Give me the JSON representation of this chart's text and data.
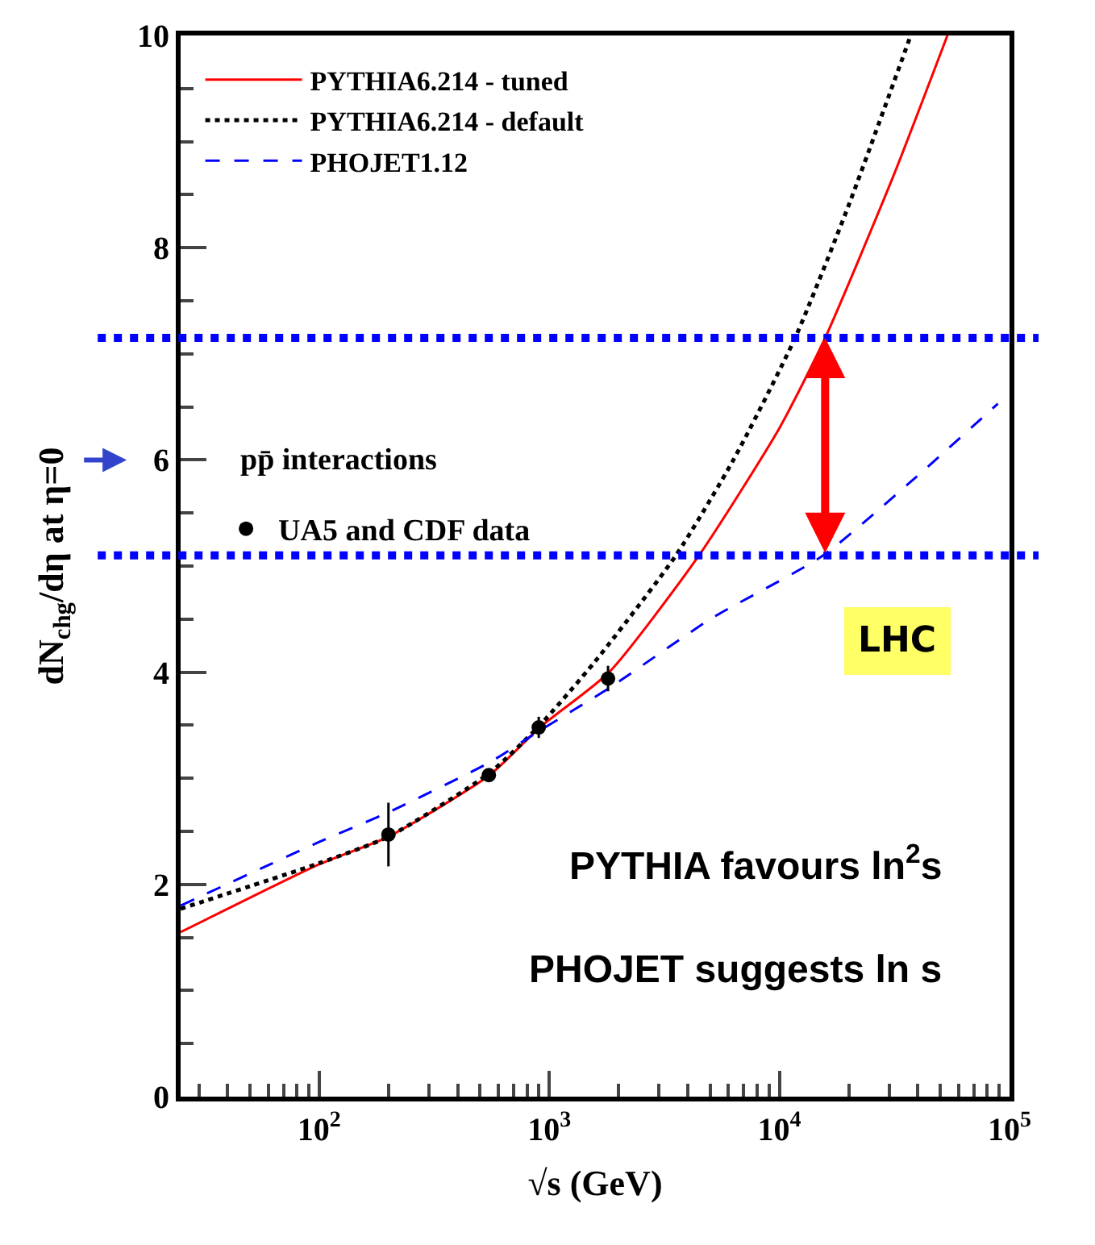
{
  "chart_data": {
    "type": "line",
    "xlabel": "√s (GeV)",
    "ylabel": "dN$_{chg}$/dη at η=0",
    "log": "x",
    "xlim": [
      25,
      100000
    ],
    "xticks": [
      {
        "value": 100,
        "label": "10$^{2}$"
      },
      {
        "value": 1000,
        "label": "10$^{3}$"
      },
      {
        "value": 10000,
        "label": "10$^{4}$"
      },
      {
        "value": 100000,
        "label": "10$^{5}$"
      }
    ],
    "ylim": [
      0,
      10
    ],
    "yticks": [
      0,
      2,
      4,
      6,
      8,
      10
    ],
    "legend": "top left",
    "series": [
      {
        "name": "PYTHIA6.214 - tuned",
        "color": "#ff0000",
        "line_style": "solid",
        "marker": "none",
        "x": [
          25,
          100,
          200,
          550,
          910,
          1820,
          4470,
          10000,
          15800,
          31600,
          53700
        ],
        "values": [
          1.55,
          2.19,
          2.45,
          3.03,
          3.48,
          4.0,
          5.1,
          6.3,
          7.15,
          8.7,
          10
        ]
      },
      {
        "name": "PYTHIA6.214 - default",
        "color": "#000000",
        "line_style": "dotted",
        "marker": "none",
        "x": [
          25,
          100,
          200,
          550,
          910,
          1580,
          3550,
          6310,
          11700,
          20000,
          37200
        ],
        "values": [
          1.77,
          2.2,
          2.45,
          3.05,
          3.5,
          4.1,
          5.1,
          6.0,
          7.15,
          8.4,
          10
        ]
      },
      {
        "name": "PHOJET1.12",
        "color": "#0000ff",
        "line_style": "dashed",
        "marker": "none",
        "x": [
          25,
          100,
          200,
          550,
          910,
          1820,
          5010,
          15500,
          39800,
          89000
        ],
        "values": [
          1.8,
          2.4,
          2.68,
          3.15,
          3.45,
          3.85,
          4.5,
          5.1,
          5.85,
          6.53
        ]
      },
      {
        "name": "UA5 and CDF data",
        "type": "scatter",
        "color": "#000000",
        "marker": "circle",
        "x": [
          200,
          546,
          900,
          1800
        ],
        "values": [
          2.47,
          3.03,
          3.48,
          3.94
        ],
        "errors": [
          0.3,
          0.05,
          0.1,
          0.12
        ]
      }
    ],
    "ref_lines": [
      {
        "axis": "y",
        "value": 7.15,
        "color": "#0000ff",
        "line_style": "dotted"
      },
      {
        "axis": "y",
        "value": 5.1,
        "color": "#0000ff",
        "line_style": "dotted"
      }
    ],
    "annotations": [
      "pp̄ interactions",
      "LHC",
      "PYTHIA favours ln$^{2}$s",
      "PHOJET suggests ln s"
    ]
  }
}
